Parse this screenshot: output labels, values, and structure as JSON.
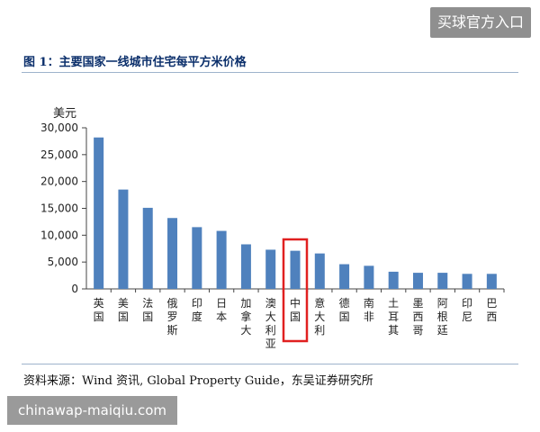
{
  "top_button": {
    "label": "买球官方入口"
  },
  "figure": {
    "title": "图 1：主要国家一线城市住宅每平方米价格"
  },
  "source": {
    "text": "资料来源：Wind 资讯, Global Property Guide，东吴证券研究所"
  },
  "watermark": {
    "text": "chinawap-maiqiu.com"
  },
  "colors": {
    "bar": "#4f81bd",
    "highlight_box": "#e02020",
    "title": "#0b2f6b"
  },
  "chart_data": {
    "type": "bar",
    "title": "图 1：主要国家一线城市住宅每平方米价格",
    "ylabel": "美元",
    "xlabel": "",
    "ylim": [
      0,
      30000
    ],
    "yticks": [
      0,
      5000,
      10000,
      15000,
      20000,
      25000,
      30000
    ],
    "ytick_labels": [
      "0",
      "5,000",
      "10,000",
      "15,000",
      "20,000",
      "25,000",
      "30,000"
    ],
    "categories": [
      "英国",
      "美国",
      "法国",
      "俄罗斯",
      "印度",
      "日本",
      "加拿大",
      "澳大利亚",
      "中国",
      "意大利",
      "德国",
      "南非",
      "土耳其",
      "墨西哥",
      "阿根廷",
      "印尼",
      "巴西"
    ],
    "values": [
      28200,
      18500,
      15100,
      13200,
      11500,
      10800,
      8300,
      7300,
      7100,
      6600,
      4600,
      4300,
      3200,
      3000,
      3000,
      2800,
      2800
    ],
    "highlight_category": "中国",
    "grid": false,
    "legend": "none"
  }
}
